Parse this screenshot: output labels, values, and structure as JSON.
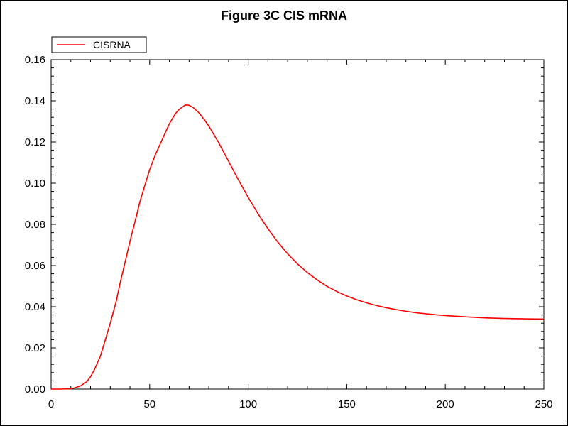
{
  "chart_data": {
    "type": "line",
    "title": "Figure 3C CIS mRNA",
    "xlabel": "",
    "ylabel": "",
    "xlim": [
      0,
      250
    ],
    "ylim": [
      0,
      0.16
    ],
    "x_ticks": [
      0,
      50,
      100,
      150,
      200,
      250
    ],
    "x_tick_labels": [
      "0",
      "50",
      "100",
      "150",
      "200",
      "250"
    ],
    "y_ticks": [
      0,
      0.02,
      0.04,
      0.06,
      0.08,
      0.1,
      0.12,
      0.14,
      0.16
    ],
    "y_tick_labels": [
      "0.00",
      "0.02",
      "0.04",
      "0.06",
      "0.08",
      "0.10",
      "0.12",
      "0.14",
      "0.16"
    ],
    "grid": false,
    "legend_position": "top-left",
    "series": [
      {
        "name": "CISRNA",
        "color": "#ff0000",
        "x": [
          0,
          5,
          10,
          12,
          15,
          18,
          20,
          22,
          25,
          28,
          30,
          33,
          35,
          38,
          40,
          43,
          45,
          48,
          50,
          53,
          55,
          58,
          60,
          63,
          65,
          68,
          69,
          70,
          72,
          75,
          78,
          80,
          85,
          90,
          95,
          100,
          105,
          110,
          115,
          120,
          125,
          130,
          135,
          140,
          145,
          150,
          155,
          160,
          165,
          170,
          175,
          180,
          185,
          190,
          195,
          200,
          210,
          220,
          230,
          240,
          250
        ],
        "y": [
          0.0,
          0.0,
          0.0002,
          0.0006,
          0.0016,
          0.0035,
          0.006,
          0.0095,
          0.016,
          0.0255,
          0.032,
          0.0425,
          0.0515,
          0.0635,
          0.0717,
          0.083,
          0.0908,
          0.1004,
          0.1066,
          0.1141,
          0.1183,
          0.1247,
          0.1289,
          0.1337,
          0.1359,
          0.1379,
          0.138,
          0.1378,
          0.1368,
          0.1342,
          0.1305,
          0.1278,
          0.1197,
          0.1107,
          0.1017,
          0.0931,
          0.0851,
          0.0779,
          0.0714,
          0.0657,
          0.0608,
          0.0566,
          0.053,
          0.0499,
          0.0474,
          0.0452,
          0.0434,
          0.0419,
          0.0406,
          0.0395,
          0.0386,
          0.0378,
          0.0371,
          0.0366,
          0.0361,
          0.0357,
          0.0351,
          0.0346,
          0.0343,
          0.0341,
          0.034
        ]
      }
    ]
  }
}
